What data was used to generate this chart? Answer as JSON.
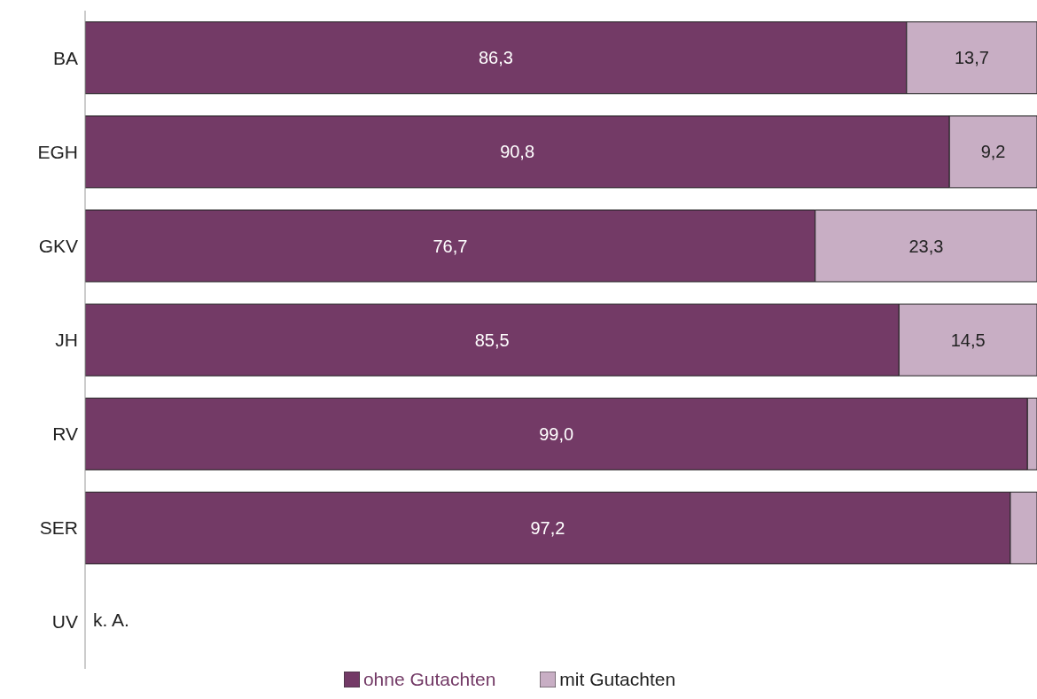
{
  "chart_data": {
    "type": "bar",
    "orientation": "horizontal",
    "stacked": true,
    "categories": [
      "BA",
      "EGH",
      "GKV",
      "JH",
      "RV",
      "SER",
      "UV"
    ],
    "xlim": [
      0,
      100
    ],
    "tick_labels": "y",
    "legend": "bottom",
    "series": [
      {
        "name": "ohne Gutachten",
        "color": "#733a66",
        "values": [
          86.3,
          90.8,
          76.7,
          85.5,
          99.0,
          97.2,
          null
        ],
        "value_labels": [
          "86,3",
          "90,8",
          "76,7",
          "85,5",
          "99,0",
          "97,2",
          null
        ]
      },
      {
        "name": "mit Gutachten",
        "color": "#c8aec4",
        "values": [
          13.7,
          9.2,
          23.3,
          14.5,
          1.0,
          2.8,
          null
        ],
        "value_labels": [
          "13,7",
          "9,2",
          "23,3",
          "14,5",
          null,
          null,
          null
        ]
      }
    ],
    "annotations": [
      "k. A."
    ]
  }
}
